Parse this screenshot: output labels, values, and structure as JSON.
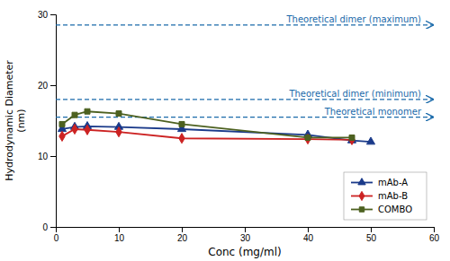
{
  "chart_data": {
    "type": "line",
    "x_label": "Conc (mg/ml)",
    "y_label": "Hydrodynamic Diameter\n(nm)",
    "xlim": [
      0,
      60
    ],
    "ylim": [
      0,
      30
    ],
    "xticks": [
      0,
      10,
      20,
      30,
      40,
      50,
      60
    ],
    "yticks": [
      0,
      10,
      20,
      30
    ],
    "grid": false,
    "legend": "lower right",
    "series": [
      {
        "name": "mAb-A",
        "color": "#1a3a8a",
        "marker": "triangle",
        "x": [
          1,
          3,
          5,
          10,
          20,
          40,
          47,
          50
        ],
        "values": [
          13.8,
          14.1,
          14.2,
          14.1,
          13.8,
          13.0,
          12.2,
          12.0
        ]
      },
      {
        "name": "mAb-B",
        "color": "#cc2222",
        "marker": "diamond",
        "x": [
          1,
          3,
          5,
          10,
          20,
          40,
          47
        ],
        "values": [
          12.8,
          13.8,
          13.7,
          13.4,
          12.5,
          12.4,
          12.3
        ]
      },
      {
        "name": "COMBO",
        "color": "#4d6120",
        "marker": "square",
        "x": [
          1,
          3,
          5,
          10,
          20,
          40,
          47
        ],
        "values": [
          14.5,
          15.8,
          16.3,
          16.0,
          14.5,
          12.6,
          12.6
        ]
      }
    ],
    "annotations": [
      {
        "text": "Theoretical dimer (maximum)",
        "y": 28.5,
        "color": "#1a6aaa",
        "line_style": "dashed"
      },
      {
        "text": "Theoretical dimer (minimum)",
        "y": 18.0,
        "color": "#1a6aaa",
        "line_style": "dashed"
      },
      {
        "text": "Theoretical monomer",
        "y": 15.5,
        "color": "#1a6aaa",
        "line_style": "dashed"
      }
    ]
  }
}
